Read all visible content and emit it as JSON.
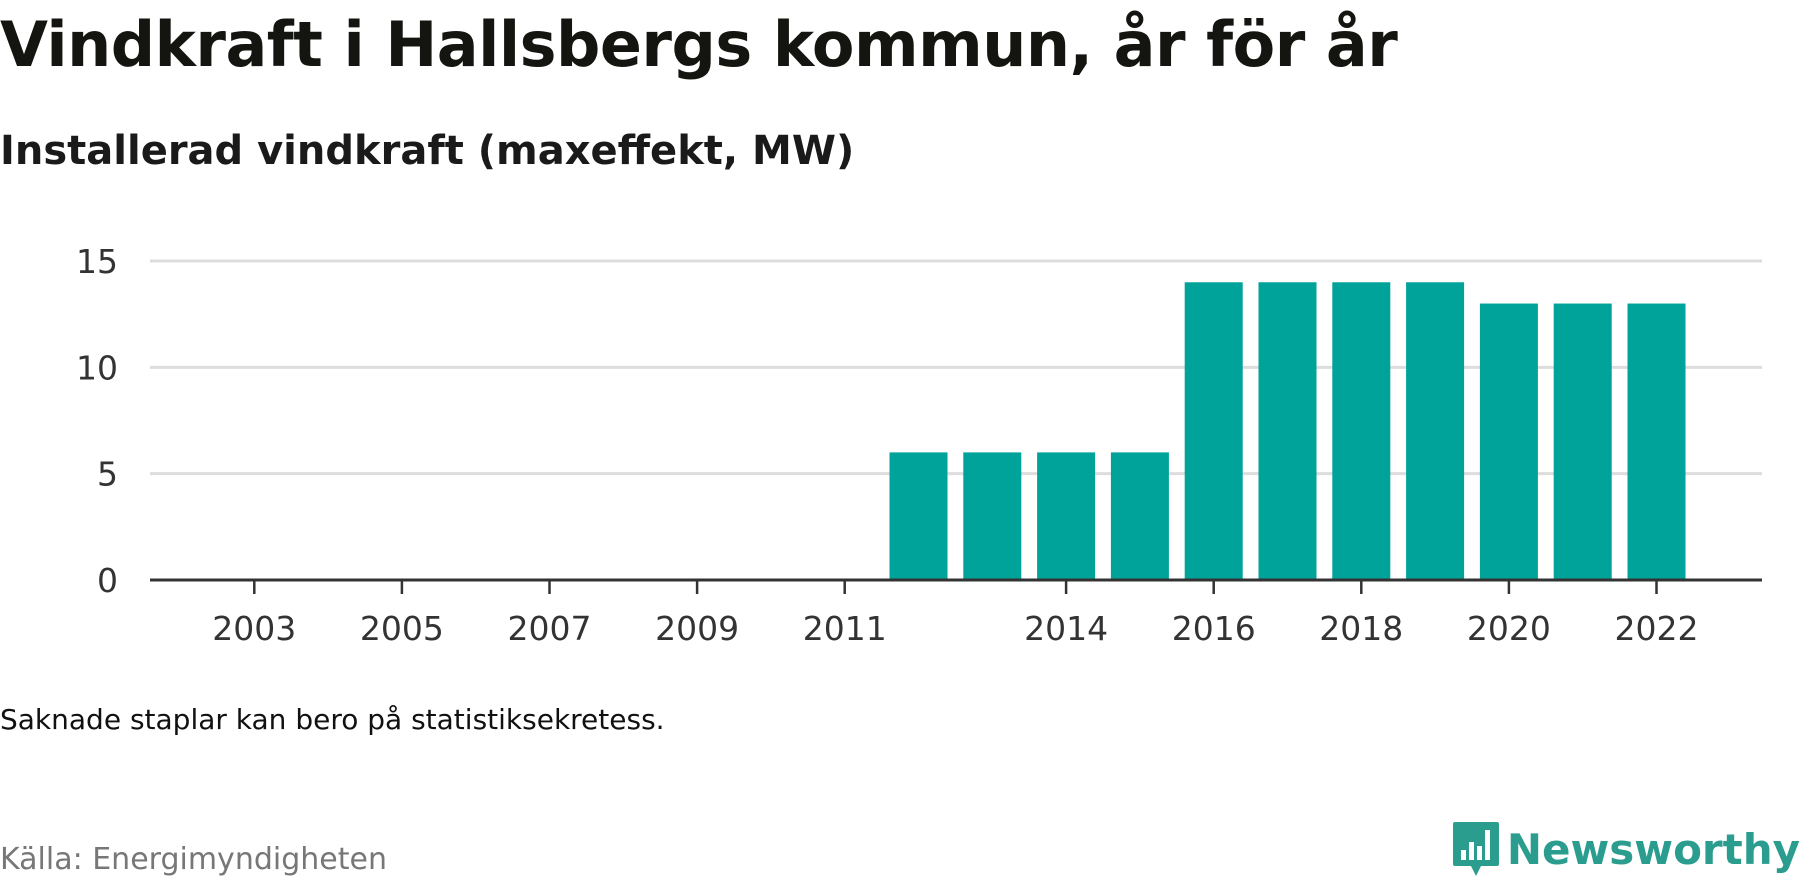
{
  "header": {
    "title": "Vindkraft i Hallsbergs kommun, år för år",
    "subtitle": "Installerad vindkraft (maxeffekt, MW)"
  },
  "footer": {
    "note": "Saknade staplar kan bero på statistiksekretess.",
    "source": "Källa: Energimyndigheten",
    "brand": "Newsworthy",
    "brand_icon": "newsworthy-logo-icon"
  },
  "colors": {
    "bar": "#00a39a",
    "grid": "#dddddd",
    "axis": "#333333",
    "brand": "#2a9d8f"
  },
  "chart_data": {
    "type": "bar",
    "categories": [
      "2002",
      "2003",
      "2004",
      "2005",
      "2006",
      "2007",
      "2008",
      "2009",
      "2010",
      "2011",
      "2012",
      "2013",
      "2014",
      "2015",
      "2016",
      "2017",
      "2018",
      "2019",
      "2020",
      "2021",
      "2022"
    ],
    "values": [
      0,
      0,
      0,
      0,
      0,
      0,
      0,
      0,
      0,
      0,
      6,
      6,
      6,
      6,
      14,
      14,
      14,
      14,
      13,
      13,
      13
    ],
    "x_tick_labels": [
      "2003",
      "2005",
      "2007",
      "2009",
      "2011",
      "2014",
      "2016",
      "2018",
      "2020",
      "2022"
    ],
    "y_ticks": [
      0,
      5,
      10,
      15
    ],
    "ylim": [
      0,
      15
    ],
    "grid": true,
    "legend": "none"
  }
}
